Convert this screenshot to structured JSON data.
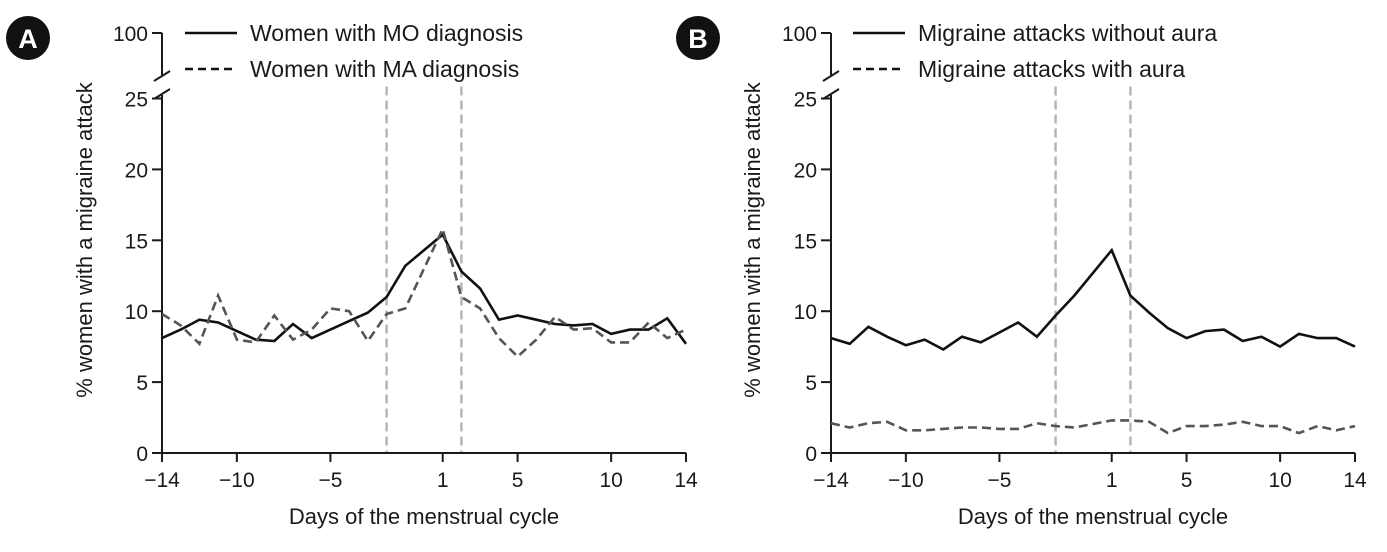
{
  "chart_data": [
    {
      "type": "line",
      "panel_label": "A",
      "xlabel": "Days of the menstrual cycle",
      "ylabel": "% women with a migraine attack",
      "x_ticks": [
        -14,
        -10,
        -5,
        1,
        5,
        10,
        14
      ],
      "x_tick_labels": [
        "−14",
        "−10",
        "−5",
        "1",
        "5",
        "10",
        "14"
      ],
      "y_ticks": [
        0,
        5,
        10,
        15,
        20,
        25
      ],
      "y_tick_labels": [
        "0",
        "5",
        "10",
        "15",
        "20",
        "25"
      ],
      "y_break_label": "100",
      "xlim": [
        -14,
        14
      ],
      "ylim": [
        0,
        25
      ],
      "reference_lines_x": [
        -2,
        2
      ],
      "legend_position": "top",
      "x": [
        -14,
        -13,
        -12,
        -11,
        -10,
        -9,
        -8,
        -7,
        -6,
        -5,
        -4,
        -3,
        -2,
        -1,
        1,
        2,
        3,
        4,
        5,
        6,
        7,
        8,
        9,
        10,
        11,
        12,
        13,
        14
      ],
      "series": [
        {
          "name": "Women with MO diagnosis",
          "style": "solid",
          "color": "#111111",
          "values": [
            8.1,
            8.7,
            9.4,
            9.2,
            8.6,
            8.0,
            7.9,
            9.1,
            8.1,
            8.7,
            9.3,
            9.9,
            11.0,
            13.2,
            15.4,
            12.8,
            11.6,
            9.4,
            9.7,
            9.4,
            9.1,
            9.0,
            9.1,
            8.4,
            8.7,
            8.7,
            9.5,
            7.7
          ]
        },
        {
          "name": "Women with MA diagnosis",
          "style": "dashed",
          "color": "#555555",
          "values": [
            9.8,
            9.0,
            7.7,
            11.1,
            8.0,
            7.8,
            9.7,
            8.0,
            8.7,
            10.2,
            10.0,
            7.9,
            9.8,
            10.2,
            15.8,
            11.0,
            10.2,
            8.1,
            6.8,
            8.0,
            9.6,
            8.7,
            8.8,
            7.8,
            7.8,
            9.2,
            8.1,
            8.7
          ]
        }
      ]
    },
    {
      "type": "line",
      "panel_label": "B",
      "xlabel": "Days of the menstrual cycle",
      "ylabel": "% women with a migraine attack",
      "x_ticks": [
        -14,
        -10,
        -5,
        1,
        5,
        10,
        14
      ],
      "x_tick_labels": [
        "−14",
        "−10",
        "−5",
        "1",
        "5",
        "10",
        "14"
      ],
      "y_ticks": [
        0,
        5,
        10,
        15,
        20,
        25
      ],
      "y_tick_labels": [
        "0",
        "5",
        "10",
        "15",
        "20",
        "25"
      ],
      "y_break_label": "100",
      "xlim": [
        -14,
        14
      ],
      "ylim": [
        0,
        25
      ],
      "reference_lines_x": [
        -2,
        2
      ],
      "legend_position": "top",
      "x": [
        -14,
        -13,
        -12,
        -11,
        -10,
        -9,
        -8,
        -7,
        -6,
        -5,
        -4,
        -3,
        -2,
        -1,
        1,
        2,
        3,
        4,
        5,
        6,
        7,
        8,
        9,
        10,
        11,
        12,
        13,
        14
      ],
      "series": [
        {
          "name": "Migraine attacks without aura",
          "style": "solid",
          "color": "#111111",
          "values": [
            8.1,
            7.7,
            8.9,
            8.2,
            7.6,
            8.0,
            7.3,
            8.2,
            7.8,
            8.5,
            9.2,
            8.2,
            9.7,
            11.1,
            14.3,
            11.1,
            9.9,
            8.8,
            8.1,
            8.6,
            8.7,
            7.9,
            8.2,
            7.5,
            8.4,
            8.1,
            8.1,
            7.5
          ]
        },
        {
          "name": "Migraine attacks with aura",
          "style": "dashed",
          "color": "#555555",
          "values": [
            2.1,
            1.8,
            2.1,
            2.2,
            1.6,
            1.6,
            1.7,
            1.8,
            1.8,
            1.7,
            1.7,
            2.1,
            1.9,
            1.8,
            2.3,
            2.3,
            2.2,
            1.4,
            1.9,
            1.9,
            2.0,
            2.2,
            1.9,
            1.9,
            1.4,
            1.9,
            1.6,
            1.9
          ]
        }
      ]
    }
  ]
}
